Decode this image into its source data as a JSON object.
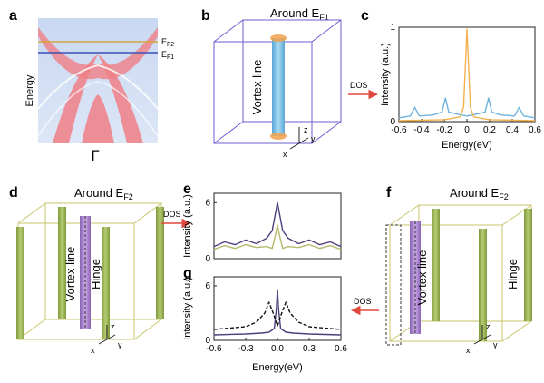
{
  "panels": {
    "a": {
      "label": "a",
      "ylabel": "Energy",
      "ef2": "E",
      "ef2_sub": "F2",
      "ef1": "E",
      "ef1_sub": "F1",
      "gamma": "Γ"
    },
    "b": {
      "label": "b",
      "title": "Around E",
      "title_sub": "F1",
      "vortex": "Vortex line",
      "axes": [
        "z",
        "y",
        "x"
      ]
    },
    "c": {
      "label": "c"
    },
    "d": {
      "label": "d",
      "title": "Around E",
      "title_sub": "F2",
      "vortex": "Vortex line",
      "hinge": "Hinge",
      "axes": [
        "z",
        "y",
        "x"
      ]
    },
    "e": {
      "label": "e"
    },
    "f": {
      "label": "f",
      "title": "Around E",
      "title_sub": "F2",
      "vortex": "Vortex line",
      "hinge": "Hinge",
      "axes": [
        "z",
        "y",
        "x"
      ]
    },
    "g": {
      "label": "g"
    }
  },
  "arrows": {
    "dos_top": "DOS",
    "dos_mid": "DOS",
    "dos_right": "DOS"
  },
  "colors": {
    "blue": "#6fb3dc",
    "orange": "#f2b24e",
    "purple": "#4d3f79",
    "olive": "#b5b86a",
    "green": "#8aa646",
    "arrow": "#e0483e"
  },
  "chart_data": [
    {
      "id": "c",
      "type": "line",
      "xlabel": "Energy(eV)",
      "ylabel": "Intensity (a.u.)",
      "xlim": [
        -0.6,
        0.6
      ],
      "ylim": [
        0,
        1
      ],
      "xticks": [
        "-0.6",
        "-0.4",
        "-0.2",
        "0",
        "0.2",
        "0.4",
        "0.6"
      ],
      "yticks": [
        "0",
        "1"
      ],
      "series": [
        {
          "color": "#6fb3dc",
          "x": [
            -0.6,
            -0.5,
            -0.46,
            -0.42,
            -0.3,
            -0.22,
            -0.19,
            -0.16,
            -0.05,
            0,
            0.05,
            0.16,
            0.19,
            0.22,
            0.3,
            0.42,
            0.46,
            0.5,
            0.6
          ],
          "y": [
            0.04,
            0.06,
            0.15,
            0.06,
            0.07,
            0.1,
            0.25,
            0.1,
            0.07,
            0.06,
            0.07,
            0.1,
            0.25,
            0.1,
            0.07,
            0.06,
            0.15,
            0.06,
            0.04
          ]
        },
        {
          "color": "#f2b24e",
          "x": [
            -0.6,
            -0.2,
            -0.06,
            -0.03,
            -0.01,
            0,
            0.01,
            0.03,
            0.06,
            0.2,
            0.6
          ],
          "y": [
            0.01,
            0.02,
            0.05,
            0.15,
            0.7,
            0.98,
            0.7,
            0.15,
            0.05,
            0.02,
            0.01
          ]
        }
      ]
    },
    {
      "id": "e",
      "type": "line",
      "xlabel": "",
      "ylabel": "Intensity (a.u.)",
      "xlim": [
        -0.6,
        0.6
      ],
      "ylim": [
        0,
        7
      ],
      "xticks": [],
      "yticks": [
        "0",
        "6"
      ],
      "series": [
        {
          "color": "#4d3f79",
          "x": [
            -0.6,
            -0.5,
            -0.4,
            -0.3,
            -0.2,
            -0.1,
            -0.05,
            -0.02,
            0,
            0.02,
            0.05,
            0.1,
            0.2,
            0.3,
            0.4,
            0.5,
            0.6
          ],
          "y": [
            1.3,
            1.8,
            1.5,
            2.0,
            1.6,
            2.2,
            3.0,
            4.8,
            6.0,
            4.8,
            3.0,
            2.2,
            1.6,
            2.0,
            1.5,
            1.8,
            1.3
          ]
        },
        {
          "color": "#b5b86a",
          "x": [
            -0.6,
            -0.5,
            -0.4,
            -0.3,
            -0.2,
            -0.1,
            -0.05,
            -0.02,
            0,
            0.02,
            0.05,
            0.1,
            0.2,
            0.3,
            0.4,
            0.5,
            0.6
          ],
          "y": [
            1.0,
            1.4,
            1.1,
            1.5,
            1.2,
            1.3,
            1.1,
            2.5,
            3.6,
            2.5,
            1.1,
            1.3,
            1.2,
            1.5,
            1.1,
            1.4,
            1.0
          ]
        }
      ]
    },
    {
      "id": "g",
      "type": "line",
      "xlabel": "Energy(eV)",
      "ylabel": "Intensity (a.u.)",
      "xlim": [
        -0.6,
        0.6
      ],
      "ylim": [
        0,
        7
      ],
      "xticks": [
        "-0.6",
        "-0.3",
        "0.0",
        "0.3",
        "0.6"
      ],
      "yticks": [
        "0",
        "6"
      ],
      "series": [
        {
          "color": "#4d3f79",
          "x": [
            -0.6,
            -0.3,
            -0.15,
            -0.08,
            -0.03,
            -0.01,
            0,
            0.01,
            0.03,
            0.08,
            0.15,
            0.3,
            0.6
          ],
          "y": [
            0.6,
            0.7,
            0.8,
            0.9,
            1.3,
            3.5,
            5.6,
            3.5,
            1.3,
            0.9,
            0.8,
            0.7,
            0.6
          ]
        },
        {
          "color": "#111111",
          "dash": true,
          "x": [
            -0.6,
            -0.3,
            -0.2,
            -0.12,
            -0.08,
            -0.04,
            0,
            0.04,
            0.08,
            0.12,
            0.2,
            0.3,
            0.6
          ],
          "y": [
            1.2,
            1.5,
            2.0,
            3.0,
            4.2,
            3.0,
            1.6,
            3.0,
            4.2,
            3.0,
            2.0,
            1.5,
            1.2
          ]
        }
      ]
    }
  ]
}
